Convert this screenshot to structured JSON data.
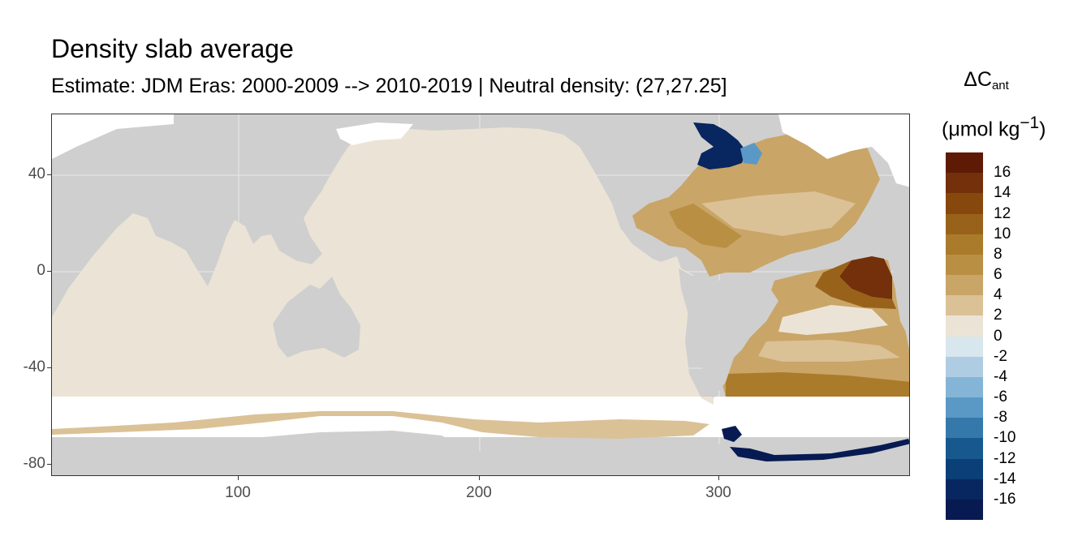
{
  "title": "Density slab average",
  "subtitle": "Estimate: JDM Eras: 2000-2009 --> 2010-2019 | Neutral density: (27,27.25]",
  "legend": {
    "title_main": "ΔC",
    "title_sub": "ant",
    "unit_prefix": "(μmol kg",
    "unit_sup": "−1",
    "unit_suffix": ")",
    "labels": [
      "16",
      "14",
      "12",
      "10",
      "8",
      "6",
      "4",
      "2",
      "0",
      "-2",
      "-4",
      "-6",
      "-8",
      "-10",
      "-12",
      "-14",
      "-16"
    ],
    "colors": [
      "#5e1a05",
      "#73300a",
      "#86480d",
      "#99621a",
      "#a97b2b",
      "#b98f43",
      "#c9a567",
      "#dbc196",
      "#ebe4d6",
      "#d8e6ee",
      "#afcde2",
      "#85b5d6",
      "#5a99c5",
      "#3579ab",
      "#17598f",
      "#0b3f77",
      "#08265f",
      "#071a52"
    ]
  },
  "axes": {
    "x_ticks": [
      "100",
      "200",
      "300"
    ],
    "y_ticks": [
      "40",
      "0",
      "-40",
      "-80"
    ]
  },
  "colors": {
    "land": "#cfcfcf",
    "ocean_pacific": "#ebe4d6",
    "no_data": "#ffffff"
  }
}
